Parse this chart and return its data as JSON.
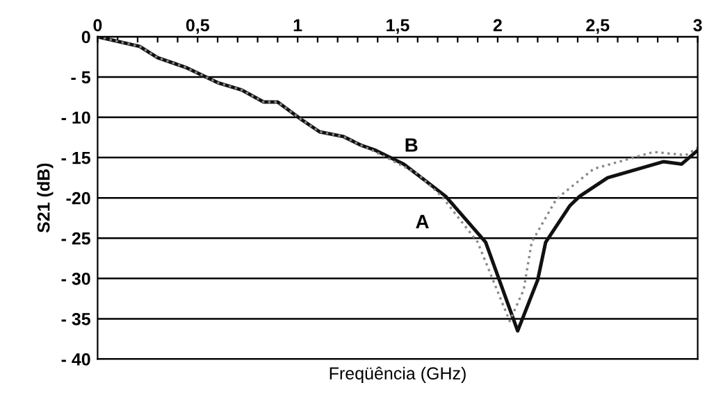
{
  "chart_data": {
    "type": "line",
    "xlabel": "Freqüência (GHz)",
    "ylabel": "S21 (dB)",
    "xlim": [
      0,
      3
    ],
    "ylim": [
      -40,
      0
    ],
    "xticks": [
      0,
      {
        "value": 0.1,
        "label": null
      },
      {
        "value": 0.2,
        "label": null
      },
      {
        "value": 0.3,
        "label": null
      },
      {
        "value": 0.4,
        "label": null
      },
      {
        "value": 0.5,
        "label": "0,5"
      },
      {
        "value": 0.6,
        "label": null
      },
      {
        "value": 0.7,
        "label": null
      },
      {
        "value": 0.8,
        "label": null
      },
      {
        "value": 0.9,
        "label": null
      },
      1,
      {
        "value": 1.1,
        "label": null
      },
      {
        "value": 1.2,
        "label": null
      },
      {
        "value": 1.3,
        "label": null
      },
      {
        "value": 1.4,
        "label": null
      },
      {
        "value": 1.5,
        "label": "1,5"
      },
      {
        "value": 1.6,
        "label": null
      },
      {
        "value": 1.7,
        "label": null
      },
      {
        "value": 1.8,
        "label": null
      },
      {
        "value": 1.9,
        "label": null
      },
      2,
      {
        "value": 2.1,
        "label": null
      },
      {
        "value": 2.2,
        "label": null
      },
      {
        "value": 2.3,
        "label": null
      },
      {
        "value": 2.4,
        "label": null
      },
      {
        "value": 2.5,
        "label": "2,5"
      },
      {
        "value": 2.6,
        "label": null
      },
      {
        "value": 2.7,
        "label": null
      },
      {
        "value": 2.8,
        "label": null
      },
      {
        "value": 2.9,
        "label": null
      },
      3
    ],
    "yticks": [
      0,
      {
        "value": -5,
        "label": "- 5"
      },
      {
        "value": -10,
        "label": "- 10"
      },
      {
        "value": -15,
        "label": "- 15"
      },
      {
        "value": -20,
        "label": "-20"
      },
      {
        "value": -25,
        "label": "- 25"
      },
      {
        "value": -30,
        "label": "- 30"
      },
      {
        "value": -35,
        "label": "- 35"
      },
      {
        "value": -40,
        "label": "- 40"
      }
    ],
    "grid": "y",
    "legend": false,
    "marker": "none",
    "series": [
      {
        "name": "B",
        "color": "#111111",
        "line_style": "solid",
        "x": [
          0.0,
          0.21,
          0.3,
          0.44,
          0.6,
          0.72,
          0.83,
          0.9,
          1.02,
          1.11,
          1.23,
          1.32,
          1.39,
          1.53,
          1.74,
          1.94,
          2.1,
          2.2,
          2.24,
          2.36,
          2.41,
          2.55,
          2.83,
          2.92,
          3.0
        ],
        "values": [
          0,
          -1.2,
          -2.6,
          -3.8,
          -5.7,
          -6.6,
          -8.1,
          -8.1,
          -10.3,
          -11.8,
          -12.4,
          -13.5,
          -14.1,
          -15.8,
          -19.8,
          -25.5,
          -36.5,
          -30.2,
          -25.5,
          -21,
          -19.8,
          -17.5,
          -15.5,
          -15.8,
          -14.1
        ]
      },
      {
        "name": "A",
        "color": "#888888",
        "line_style": "dotted",
        "x": [
          0.0,
          0.21,
          0.3,
          0.44,
          0.6,
          0.72,
          0.83,
          0.9,
          1.02,
          1.11,
          1.23,
          1.32,
          1.39,
          1.53,
          1.6,
          1.72,
          1.9,
          2.06,
          2.13,
          2.17,
          2.29,
          2.31,
          2.48,
          2.78,
          2.94,
          3.0
        ],
        "values": [
          0,
          -1.2,
          -2.6,
          -3.8,
          -5.7,
          -6.6,
          -8.1,
          -8.1,
          -10.3,
          -11.8,
          -12.4,
          -13.5,
          -14.3,
          -16.1,
          -17,
          -19.8,
          -25.5,
          -35.3,
          -31.4,
          -25.5,
          -20.3,
          -19.8,
          -16.4,
          -14.3,
          -14.7,
          -13.8
        ]
      }
    ]
  }
}
